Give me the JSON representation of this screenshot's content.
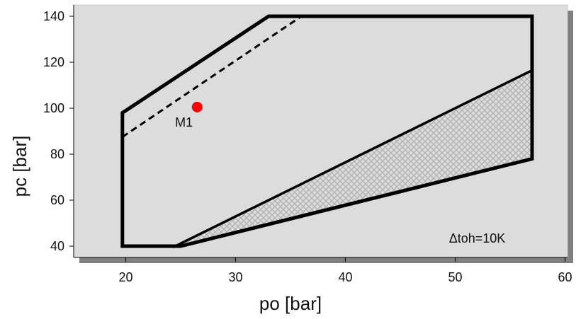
{
  "chart_data": {
    "type": "line",
    "xlabel": "po [bar]",
    "ylabel": "pc [bar]",
    "xlim": [
      15,
      60
    ],
    "ylim": [
      35,
      145
    ],
    "xticks": [
      20,
      30,
      40,
      50,
      60
    ],
    "yticks": [
      40,
      60,
      80,
      100,
      120,
      140
    ],
    "grid": false,
    "series": [
      {
        "values": [
          {
            "x": 19.7,
            "y": 40
          },
          {
            "x": 19.7,
            "y": 98
          },
          {
            "x": 33,
            "y": 140
          },
          {
            "x": 57,
            "y": 140
          },
          {
            "x": 57,
            "y": 78
          },
          {
            "x": 25,
            "y": 40
          },
          {
            "x": 19.7,
            "y": 40
          }
        ]
      },
      {
        "values": [
          {
            "x": 19.7,
            "y": 87.5
          },
          {
            "x": 36,
            "y": 140
          }
        ]
      },
      {
        "values": [
          {
            "x": 24.3,
            "y": 39.5
          },
          {
            "x": 57,
            "y": 116.5
          },
          {
            "x": 57,
            "y": 78
          },
          {
            "x": 25,
            "y": 40
          }
        ]
      }
    ],
    "points": [
      {
        "x": 26.5,
        "y": 100.5,
        "color": "#ff0000"
      }
    ],
    "annotations": [
      {
        "text": "M1",
        "x": 25.3,
        "y": 92
      },
      {
        "text": "Δtoh=10K",
        "x": 52,
        "y": 41.5
      }
    ],
    "colors": {
      "plot_background": "#dcdcdc",
      "shadow": "#7f7f7f",
      "envelope": "#000000",
      "point": "#ff0000",
      "hatch": "#b0b0b0"
    }
  }
}
